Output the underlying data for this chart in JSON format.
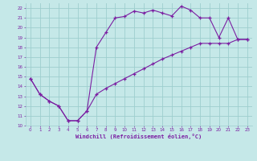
{
  "background_color": "#c5e8e8",
  "grid_color": "#9ecece",
  "line_color": "#7b1fa2",
  "xlabel": "Windchill (Refroidissement éolien,°C)",
  "xlim": [
    -0.5,
    23.5
  ],
  "ylim": [
    10,
    22.5
  ],
  "xticks": [
    0,
    1,
    2,
    3,
    4,
    5,
    6,
    7,
    8,
    9,
    10,
    11,
    12,
    13,
    14,
    15,
    16,
    17,
    18,
    19,
    20,
    21,
    22,
    23
  ],
  "yticks": [
    10,
    11,
    12,
    13,
    14,
    15,
    16,
    17,
    18,
    19,
    20,
    21,
    22
  ],
  "curve1_x": [
    0,
    1,
    2,
    3,
    4,
    5,
    6,
    7,
    8,
    9,
    10,
    11,
    12,
    13,
    14,
    15,
    16,
    17,
    18,
    19,
    20,
    21,
    22,
    23
  ],
  "curve1_y": [
    14.8,
    13.2,
    12.5,
    12.0,
    10.5,
    10.5,
    11.5,
    18.0,
    19.5,
    21.0,
    21.15,
    21.7,
    21.5,
    21.8,
    21.5,
    21.2,
    22.2,
    21.8,
    21.0,
    21.0,
    19.0,
    21.0,
    18.8,
    18.8
  ],
  "curve2_x": [
    0,
    1,
    2,
    3,
    4,
    5,
    6,
    7,
    8,
    9,
    10,
    11,
    12,
    13,
    14,
    15,
    16,
    17,
    18,
    19,
    20,
    21,
    22,
    23
  ],
  "curve2_y": [
    14.8,
    13.2,
    12.5,
    12.0,
    10.5,
    10.5,
    11.5,
    13.2,
    13.8,
    14.3,
    14.8,
    15.3,
    15.8,
    16.3,
    16.8,
    17.2,
    17.6,
    18.0,
    18.4,
    18.4,
    18.4,
    18.4,
    18.8,
    18.8
  ]
}
